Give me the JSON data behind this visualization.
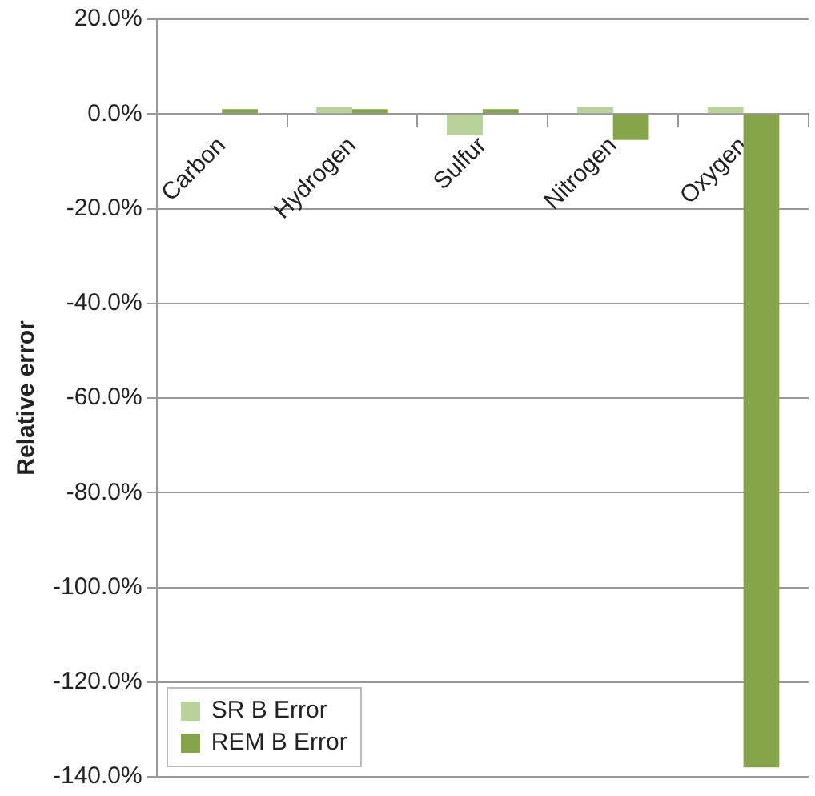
{
  "chart_data": {
    "type": "bar",
    "ylabel": "Relative error",
    "categories": [
      "Carbon",
      "Hydrogen",
      "Sulfur",
      "Nitrogen",
      "Oxygen"
    ],
    "series": [
      {
        "name": "SR B Error",
        "color": "#b8d29a",
        "values": [
          0,
          1.5,
          -4.5,
          1.5,
          1.5
        ]
      },
      {
        "name": "REM B Error",
        "color": "#86a44a",
        "values": [
          1,
          1,
          1,
          -5.5,
          -138
        ]
      }
    ],
    "ylim": [
      -140,
      20
    ],
    "yticks": [
      {
        "value": 20,
        "label": "20.0%"
      },
      {
        "value": 0,
        "label": "0.0%"
      },
      {
        "value": -20,
        "label": "-20.0%"
      },
      {
        "value": -40,
        "label": "-40.0%"
      },
      {
        "value": -60,
        "label": "-60.0%"
      },
      {
        "value": -80,
        "label": "-80.0%"
      },
      {
        "value": -100,
        "label": "-100.0%"
      },
      {
        "value": -120,
        "label": "-120.0%"
      },
      {
        "value": -140,
        "label": "-140.0%"
      }
    ],
    "grid": "y",
    "legend": "bottom left"
  }
}
